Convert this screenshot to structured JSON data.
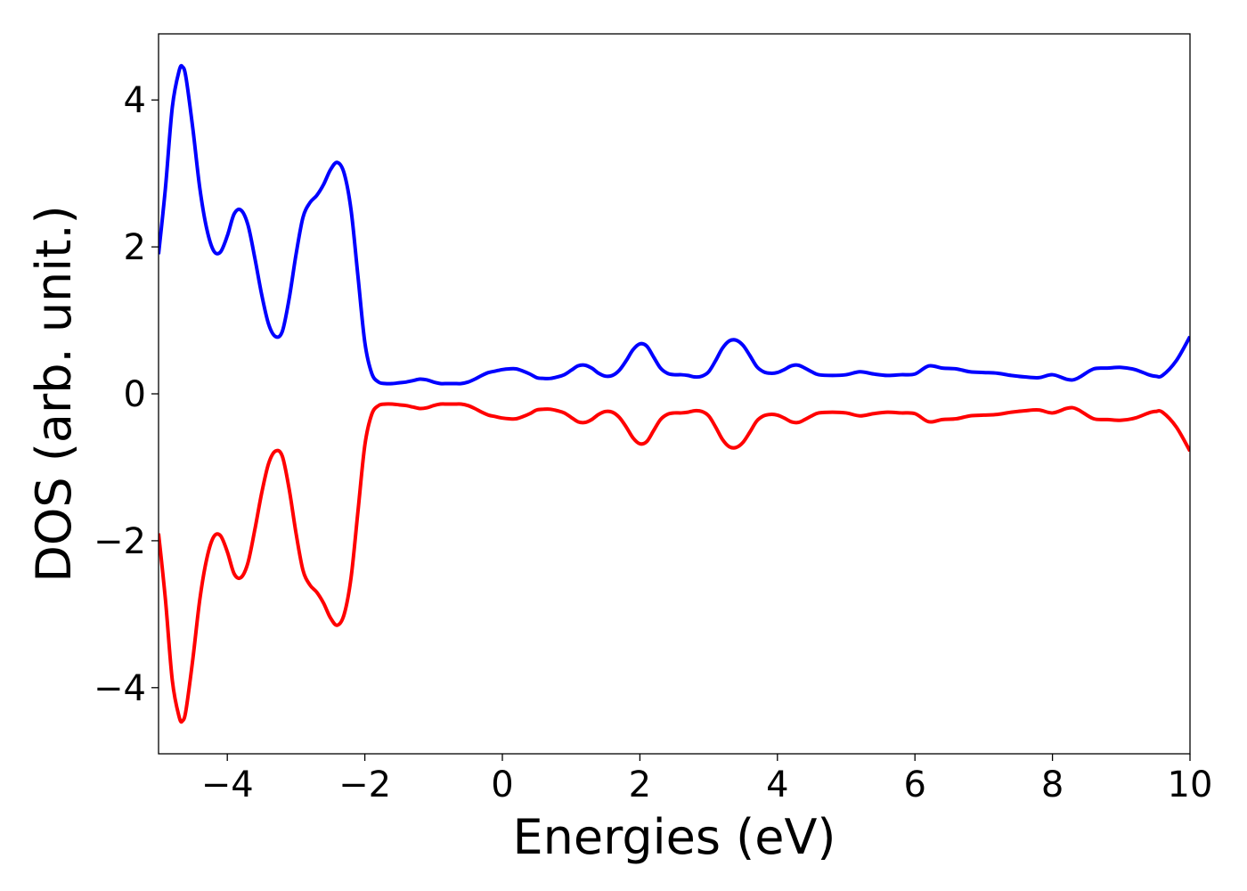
{
  "chart_data": {
    "type": "line",
    "title": "",
    "xlabel": "Energies (eV)",
    "ylabel": "DOS (arb. unit.)",
    "xlim": [
      -5,
      10
    ],
    "ylim": [
      -4.9,
      4.9
    ],
    "xticks": [
      -4,
      -2,
      0,
      2,
      4,
      6,
      8,
      10
    ],
    "xtick_labels": [
      "−4",
      "−2",
      "0",
      "2",
      "4",
      "6",
      "8",
      "10"
    ],
    "yticks": [
      -4,
      -2,
      0,
      2,
      4
    ],
    "ytick_labels": [
      "−4",
      "−2",
      "0",
      "2",
      "4"
    ],
    "grid": false,
    "legend": "none",
    "series": [
      {
        "color": "#0000ff",
        "x": [
          -5.0,
          -4.9,
          -4.8,
          -4.7,
          -4.65,
          -4.6,
          -4.5,
          -4.4,
          -4.3,
          -4.2,
          -4.1,
          -4.0,
          -3.9,
          -3.8,
          -3.7,
          -3.6,
          -3.5,
          -3.4,
          -3.3,
          -3.2,
          -3.1,
          -3.0,
          -2.9,
          -2.8,
          -2.7,
          -2.6,
          -2.5,
          -2.4,
          -2.3,
          -2.2,
          -2.1,
          -2.0,
          -1.9,
          -1.8,
          -1.7,
          -1.6,
          -1.5,
          -1.4,
          -1.3,
          -1.2,
          -1.1,
          -1.0,
          -0.9,
          -0.8,
          -0.7,
          -0.6,
          -0.5,
          -0.4,
          -0.3,
          -0.2,
          -0.1,
          0.0,
          0.1,
          0.2,
          0.3,
          0.4,
          0.5,
          0.6,
          0.7,
          0.8,
          0.9,
          1.0,
          1.1,
          1.2,
          1.3,
          1.4,
          1.5,
          1.6,
          1.7,
          1.8,
          1.9,
          2.0,
          2.1,
          2.2,
          2.3,
          2.4,
          2.5,
          2.6,
          2.7,
          2.8,
          2.9,
          3.0,
          3.1,
          3.2,
          3.3,
          3.4,
          3.5,
          3.6,
          3.7,
          3.8,
          3.9,
          4.0,
          4.1,
          4.2,
          4.3,
          4.4,
          4.5,
          4.6,
          4.8,
          5.0,
          5.2,
          5.4,
          5.6,
          5.8,
          6.0,
          6.2,
          6.4,
          6.6,
          6.8,
          7.0,
          7.2,
          7.4,
          7.6,
          7.8,
          8.0,
          8.2,
          8.3,
          8.4,
          8.6,
          8.8,
          9.0,
          9.2,
          9.4,
          9.5,
          9.6,
          9.8,
          10.0
        ],
        "y": [
          1.9,
          2.8,
          3.9,
          4.4,
          4.45,
          4.3,
          3.6,
          2.8,
          2.25,
          1.95,
          1.93,
          2.15,
          2.45,
          2.5,
          2.3,
          1.85,
          1.35,
          0.95,
          0.78,
          0.85,
          1.3,
          1.9,
          2.4,
          2.6,
          2.7,
          2.85,
          3.05,
          3.15,
          3.0,
          2.5,
          1.6,
          0.7,
          0.28,
          0.16,
          0.14,
          0.14,
          0.15,
          0.16,
          0.18,
          0.2,
          0.19,
          0.16,
          0.14,
          0.14,
          0.14,
          0.14,
          0.16,
          0.2,
          0.25,
          0.29,
          0.31,
          0.33,
          0.34,
          0.34,
          0.31,
          0.27,
          0.22,
          0.21,
          0.21,
          0.23,
          0.26,
          0.32,
          0.38,
          0.39,
          0.35,
          0.28,
          0.24,
          0.25,
          0.32,
          0.45,
          0.6,
          0.68,
          0.65,
          0.5,
          0.35,
          0.28,
          0.26,
          0.26,
          0.25,
          0.23,
          0.24,
          0.3,
          0.45,
          0.62,
          0.72,
          0.73,
          0.66,
          0.52,
          0.37,
          0.3,
          0.28,
          0.29,
          0.33,
          0.38,
          0.39,
          0.35,
          0.3,
          0.26,
          0.25,
          0.26,
          0.3,
          0.27,
          0.25,
          0.26,
          0.27,
          0.38,
          0.35,
          0.34,
          0.3,
          0.29,
          0.28,
          0.25,
          0.23,
          0.22,
          0.26,
          0.2,
          0.19,
          0.23,
          0.34,
          0.35,
          0.36,
          0.33,
          0.26,
          0.24,
          0.25,
          0.45,
          0.78
        ]
      },
      {
        "color": "#ff0000",
        "x": [
          -5.0,
          -4.9,
          -4.8,
          -4.7,
          -4.65,
          -4.6,
          -4.5,
          -4.4,
          -4.3,
          -4.2,
          -4.1,
          -4.0,
          -3.9,
          -3.8,
          -3.7,
          -3.6,
          -3.5,
          -3.4,
          -3.3,
          -3.2,
          -3.1,
          -3.0,
          -2.9,
          -2.8,
          -2.7,
          -2.6,
          -2.5,
          -2.4,
          -2.3,
          -2.2,
          -2.1,
          -2.0,
          -1.9,
          -1.8,
          -1.7,
          -1.6,
          -1.5,
          -1.4,
          -1.3,
          -1.2,
          -1.1,
          -1.0,
          -0.9,
          -0.8,
          -0.7,
          -0.6,
          -0.5,
          -0.4,
          -0.3,
          -0.2,
          -0.1,
          0.0,
          0.1,
          0.2,
          0.3,
          0.4,
          0.5,
          0.6,
          0.7,
          0.8,
          0.9,
          1.0,
          1.1,
          1.2,
          1.3,
          1.4,
          1.5,
          1.6,
          1.7,
          1.8,
          1.9,
          2.0,
          2.1,
          2.2,
          2.3,
          2.4,
          2.5,
          2.6,
          2.7,
          2.8,
          2.9,
          3.0,
          3.1,
          3.2,
          3.3,
          3.4,
          3.5,
          3.6,
          3.7,
          3.8,
          3.9,
          4.0,
          4.1,
          4.2,
          4.3,
          4.4,
          4.5,
          4.6,
          4.8,
          5.0,
          5.2,
          5.4,
          5.6,
          5.8,
          6.0,
          6.2,
          6.4,
          6.6,
          6.8,
          7.0,
          7.2,
          7.4,
          7.6,
          7.8,
          8.0,
          8.2,
          8.3,
          8.4,
          8.6,
          8.8,
          9.0,
          9.2,
          9.4,
          9.5,
          9.6,
          9.8,
          10.0
        ],
        "y": [
          -1.9,
          -2.8,
          -3.9,
          -4.4,
          -4.45,
          -4.3,
          -3.6,
          -2.8,
          -2.25,
          -1.95,
          -1.93,
          -2.15,
          -2.45,
          -2.5,
          -2.3,
          -1.85,
          -1.35,
          -0.95,
          -0.78,
          -0.85,
          -1.3,
          -1.9,
          -2.4,
          -2.6,
          -2.7,
          -2.85,
          -3.05,
          -3.15,
          -3.0,
          -2.5,
          -1.6,
          -0.7,
          -0.28,
          -0.16,
          -0.14,
          -0.14,
          -0.15,
          -0.16,
          -0.18,
          -0.2,
          -0.19,
          -0.16,
          -0.14,
          -0.14,
          -0.14,
          -0.14,
          -0.16,
          -0.2,
          -0.25,
          -0.29,
          -0.31,
          -0.33,
          -0.34,
          -0.34,
          -0.31,
          -0.27,
          -0.22,
          -0.21,
          -0.21,
          -0.23,
          -0.26,
          -0.32,
          -0.38,
          -0.39,
          -0.35,
          -0.28,
          -0.24,
          -0.25,
          -0.32,
          -0.45,
          -0.6,
          -0.68,
          -0.65,
          -0.5,
          -0.35,
          -0.28,
          -0.26,
          -0.26,
          -0.25,
          -0.23,
          -0.24,
          -0.3,
          -0.45,
          -0.62,
          -0.72,
          -0.73,
          -0.66,
          -0.52,
          -0.37,
          -0.3,
          -0.28,
          -0.29,
          -0.33,
          -0.38,
          -0.39,
          -0.35,
          -0.3,
          -0.26,
          -0.25,
          -0.26,
          -0.3,
          -0.27,
          -0.25,
          -0.26,
          -0.27,
          -0.38,
          -0.35,
          -0.34,
          -0.3,
          -0.29,
          -0.28,
          -0.25,
          -0.23,
          -0.22,
          -0.26,
          -0.2,
          -0.19,
          -0.23,
          -0.34,
          -0.35,
          -0.36,
          -0.33,
          -0.26,
          -0.24,
          -0.25,
          -0.45,
          -0.78
        ]
      }
    ]
  }
}
